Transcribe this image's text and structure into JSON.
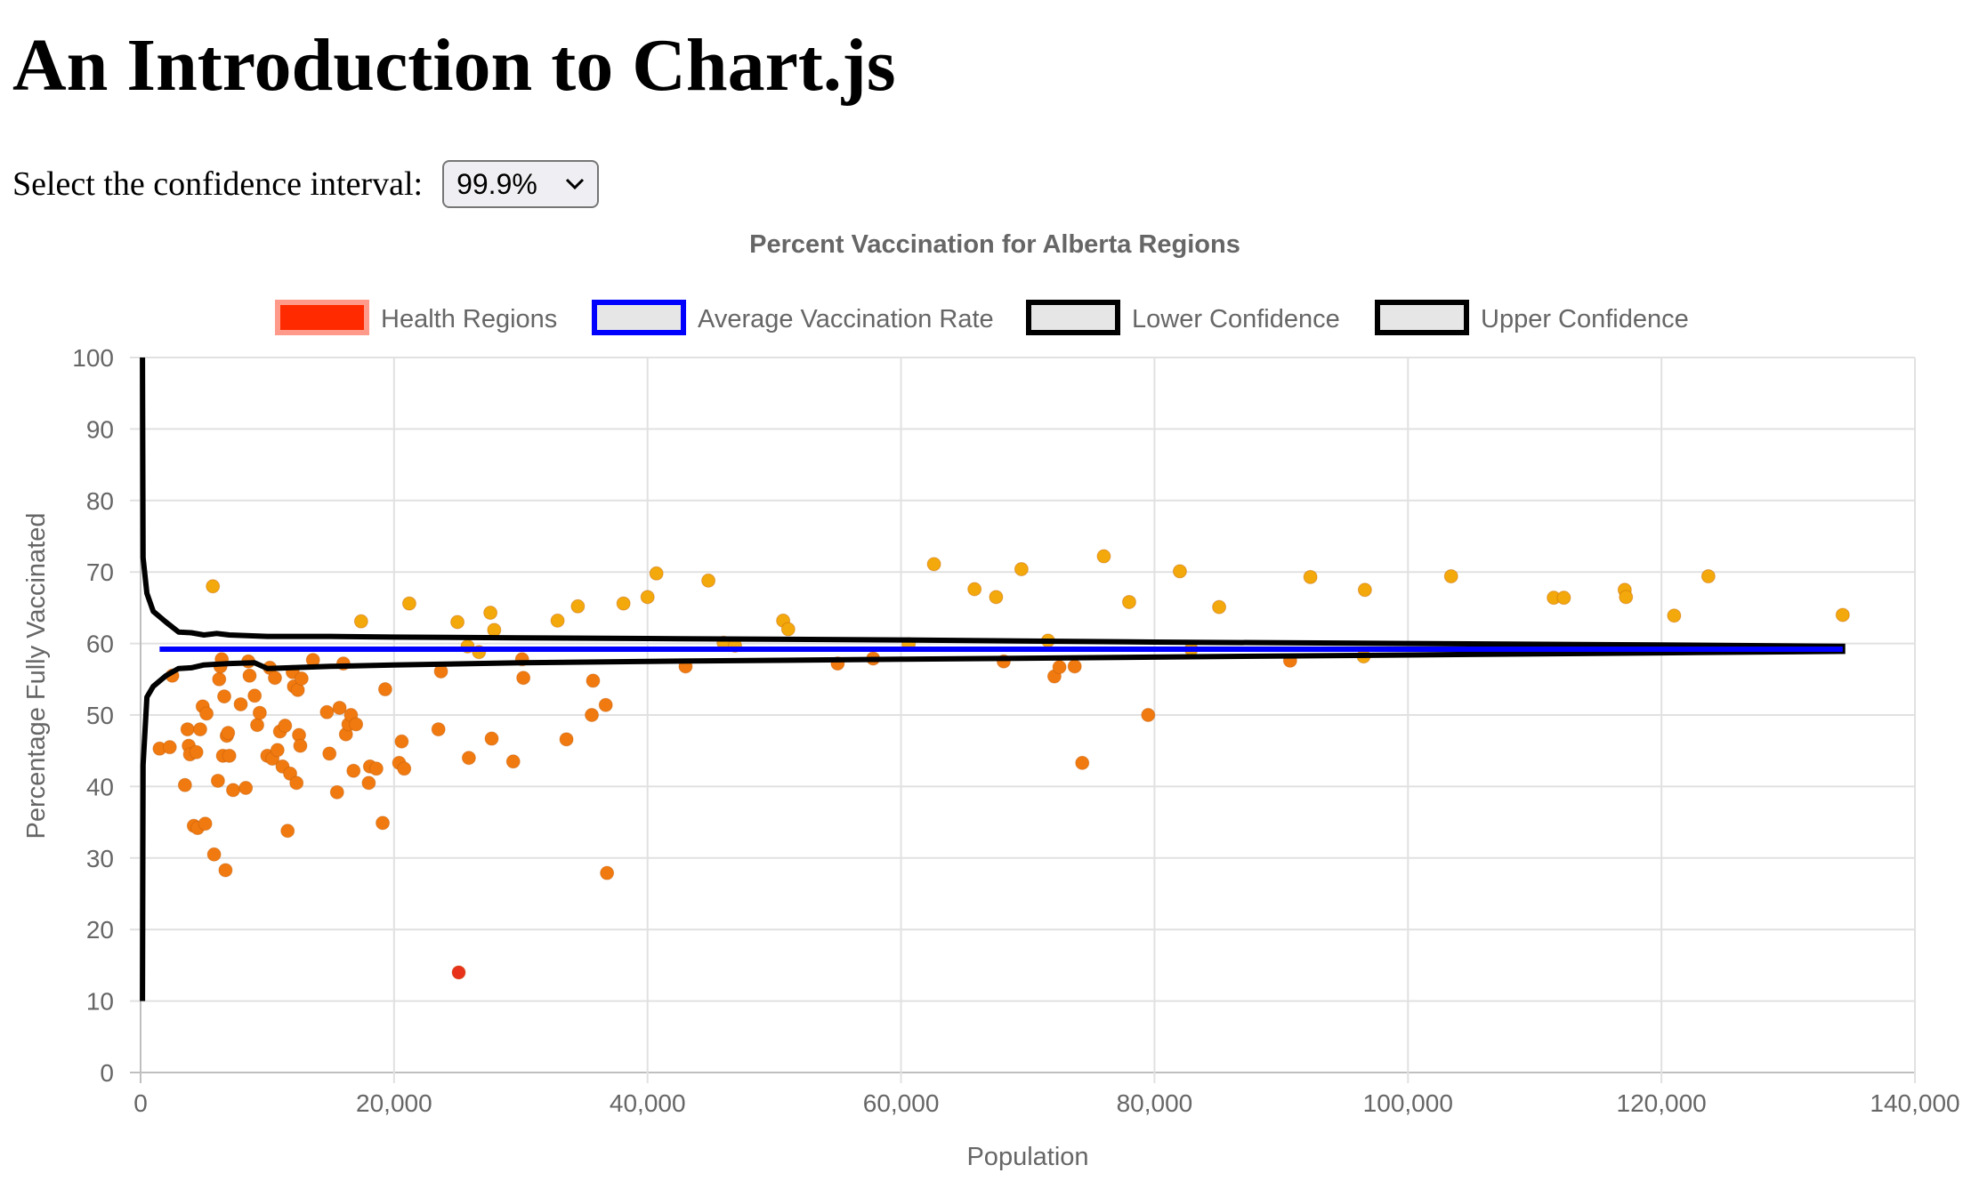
{
  "page": {
    "title": "An Introduction to Chart.js"
  },
  "controls": {
    "ci_label": "Select the confidence interval:",
    "ci_value": "99.9%",
    "ci_icon": "chevron-down-icon"
  },
  "chart_data": {
    "type": "scatter",
    "title": "Percent Vaccination for Alberta Regions",
    "xlabel": "Population",
    "ylabel": "Percentage Fully Vaccinated",
    "xlim": [
      0,
      140000
    ],
    "ylim": [
      0,
      100
    ],
    "x_ticks": [
      "0",
      "20,000",
      "40,000",
      "60,000",
      "80,000",
      "100,000",
      "120,000",
      "140,000"
    ],
    "y_ticks": [
      "0",
      "10",
      "20",
      "30",
      "40",
      "50",
      "60",
      "70",
      "80",
      "90",
      "100"
    ],
    "grid": true,
    "legend_position": "top",
    "legend": [
      {
        "label": "Health Regions",
        "fill": "#ff2a00",
        "border": "#ff9a8a"
      },
      {
        "label": "Average Vaccination Rate",
        "fill": "#e6e6e6",
        "border": "#0000ff"
      },
      {
        "label": "Lower Confidence",
        "fill": "#e6e6e6",
        "border": "#000000"
      },
      {
        "label": "Upper Confidence",
        "fill": "#e6e6e6",
        "border": "#000000"
      }
    ],
    "colors": {
      "low": "#e8321a",
      "mid": "#f07a10",
      "high": "#f3a80c",
      "average": "#0000ff",
      "confidence": "#000000"
    },
    "series": [
      {
        "name": "Health Regions",
        "points": [
          [
            1500,
            45.3
          ],
          [
            2300,
            45.5
          ],
          [
            2500,
            55.5
          ],
          [
            3500,
            40.2
          ],
          [
            3700,
            48
          ],
          [
            3800,
            45.7
          ],
          [
            3900,
            44.5
          ],
          [
            4200,
            34.5
          ],
          [
            4400,
            44.8
          ],
          [
            4500,
            34.2
          ],
          [
            4700,
            48
          ],
          [
            4900,
            51.2
          ],
          [
            5100,
            34.8
          ],
          [
            5200,
            50.2
          ],
          [
            5700,
            68
          ],
          [
            5800,
            30.5
          ],
          [
            6100,
            40.8
          ],
          [
            6200,
            55
          ],
          [
            6300,
            56.8
          ],
          [
            6400,
            57.8
          ],
          [
            6500,
            44.3
          ],
          [
            6600,
            52.6
          ],
          [
            6700,
            28.3
          ],
          [
            6800,
            47.1
          ],
          [
            6900,
            47.5
          ],
          [
            7000,
            44.3
          ],
          [
            7300,
            39.5
          ],
          [
            7900,
            51.5
          ],
          [
            8300,
            39.8
          ],
          [
            8500,
            57.5
          ],
          [
            8600,
            55.5
          ],
          [
            9000,
            52.7
          ],
          [
            9200,
            48.6
          ],
          [
            9400,
            50.3
          ],
          [
            10000,
            44.3
          ],
          [
            10200,
            56.6
          ],
          [
            10400,
            43.9
          ],
          [
            10600,
            55.2
          ],
          [
            10800,
            45.1
          ],
          [
            11000,
            47.7
          ],
          [
            11200,
            42.8
          ],
          [
            11400,
            48.5
          ],
          [
            11600,
            33.8
          ],
          [
            11800,
            41.8
          ],
          [
            12000,
            56
          ],
          [
            12100,
            54
          ],
          [
            12300,
            40.5
          ],
          [
            12400,
            53.5
          ],
          [
            12500,
            47.2
          ],
          [
            12600,
            45.7
          ],
          [
            12700,
            55.1
          ],
          [
            13600,
            57.7
          ],
          [
            14700,
            50.4
          ],
          [
            14900,
            44.6
          ],
          [
            15500,
            39.2
          ],
          [
            15700,
            51
          ],
          [
            16000,
            57.2
          ],
          [
            16200,
            47.3
          ],
          [
            16400,
            48.7
          ],
          [
            16600,
            50
          ],
          [
            16800,
            42.2
          ],
          [
            17000,
            48.7
          ],
          [
            17400,
            63.1
          ],
          [
            18000,
            40.5
          ],
          [
            18100,
            42.8
          ],
          [
            18600,
            42.5
          ],
          [
            19100,
            34.9
          ],
          [
            19300,
            53.6
          ],
          [
            20400,
            43.3
          ],
          [
            20600,
            46.3
          ],
          [
            20800,
            42.5
          ],
          [
            21200,
            65.6
          ],
          [
            23500,
            48
          ],
          [
            23700,
            56.1
          ],
          [
            25000,
            63
          ],
          [
            25100,
            14
          ],
          [
            25800,
            59.6
          ],
          [
            25900,
            44
          ],
          [
            26700,
            58.8
          ],
          [
            27600,
            64.3
          ],
          [
            27700,
            46.7
          ],
          [
            27900,
            61.9
          ],
          [
            29400,
            43.5
          ],
          [
            30100,
            57.8
          ],
          [
            30200,
            55.2
          ],
          [
            32900,
            63.2
          ],
          [
            33600,
            46.6
          ],
          [
            34500,
            65.2
          ],
          [
            35600,
            50
          ],
          [
            35700,
            54.8
          ],
          [
            36700,
            51.4
          ],
          [
            36800,
            27.9
          ],
          [
            38100,
            65.6
          ],
          [
            40000,
            66.5
          ],
          [
            40700,
            69.8
          ],
          [
            43000,
            56.8
          ],
          [
            44800,
            68.8
          ],
          [
            46000,
            60.1
          ],
          [
            46900,
            59.7
          ],
          [
            50700,
            63.2
          ],
          [
            51100,
            62
          ],
          [
            55000,
            57.2
          ],
          [
            57800,
            57.9
          ],
          [
            60600,
            59.9
          ],
          [
            62600,
            71.1
          ],
          [
            65800,
            67.6
          ],
          [
            67500,
            66.5
          ],
          [
            68100,
            57.5
          ],
          [
            69500,
            70.4
          ],
          [
            71600,
            60.4
          ],
          [
            72100,
            55.4
          ],
          [
            72500,
            56.7
          ],
          [
            73700,
            56.8
          ],
          [
            74300,
            43.3
          ],
          [
            76000,
            72.2
          ],
          [
            78000,
            65.8
          ],
          [
            79500,
            50
          ],
          [
            82000,
            70.1
          ],
          [
            82900,
            59.2
          ],
          [
            85100,
            65.1
          ],
          [
            90700,
            57.6
          ],
          [
            92300,
            69.3
          ],
          [
            96500,
            58.2
          ],
          [
            96600,
            67.5
          ],
          [
            103400,
            69.4
          ],
          [
            111500,
            66.4
          ],
          [
            112300,
            66.4
          ],
          [
            117100,
            67.5
          ],
          [
            117200,
            66.5
          ],
          [
            121000,
            63.9
          ],
          [
            123700,
            69.4
          ],
          [
            134300,
            64
          ]
        ]
      },
      {
        "name": "Average Vaccination Rate",
        "x": [
          1500,
          134300
        ],
        "y": [
          59.2,
          59.2
        ]
      },
      {
        "name": "Lower Confidence",
        "points": [
          [
            150,
            10
          ],
          [
            200,
            43
          ],
          [
            500,
            52.5
          ],
          [
            1000,
            54
          ],
          [
            2000,
            55.5
          ],
          [
            3000,
            56.5
          ],
          [
            4000,
            56.6
          ],
          [
            5000,
            57
          ],
          [
            6000,
            57.1
          ],
          [
            7000,
            57.2
          ],
          [
            9000,
            57.3
          ],
          [
            10000,
            56.5
          ],
          [
            15000,
            56.8
          ],
          [
            20000,
            57
          ],
          [
            30000,
            57.3
          ],
          [
            40000,
            57.5
          ],
          [
            60000,
            57.8
          ],
          [
            80000,
            58.1
          ],
          [
            100000,
            58.4
          ],
          [
            120000,
            58.7
          ],
          [
            134500,
            58.9
          ]
        ]
      },
      {
        "name": "Upper Confidence",
        "points": [
          [
            150,
            100
          ],
          [
            200,
            72
          ],
          [
            500,
            67
          ],
          [
            1000,
            64.5
          ],
          [
            2000,
            63
          ],
          [
            3000,
            61.6
          ],
          [
            4000,
            61.5
          ],
          [
            5000,
            61.2
          ],
          [
            6000,
            61.4
          ],
          [
            7000,
            61.2
          ],
          [
            10000,
            61
          ],
          [
            15000,
            61
          ],
          [
            20000,
            60.9
          ],
          [
            30000,
            60.8
          ],
          [
            40000,
            60.7
          ],
          [
            60000,
            60.5
          ],
          [
            80000,
            60.2
          ],
          [
            100000,
            60
          ],
          [
            120000,
            59.8
          ],
          [
            134500,
            59.6
          ]
        ]
      }
    ]
  }
}
